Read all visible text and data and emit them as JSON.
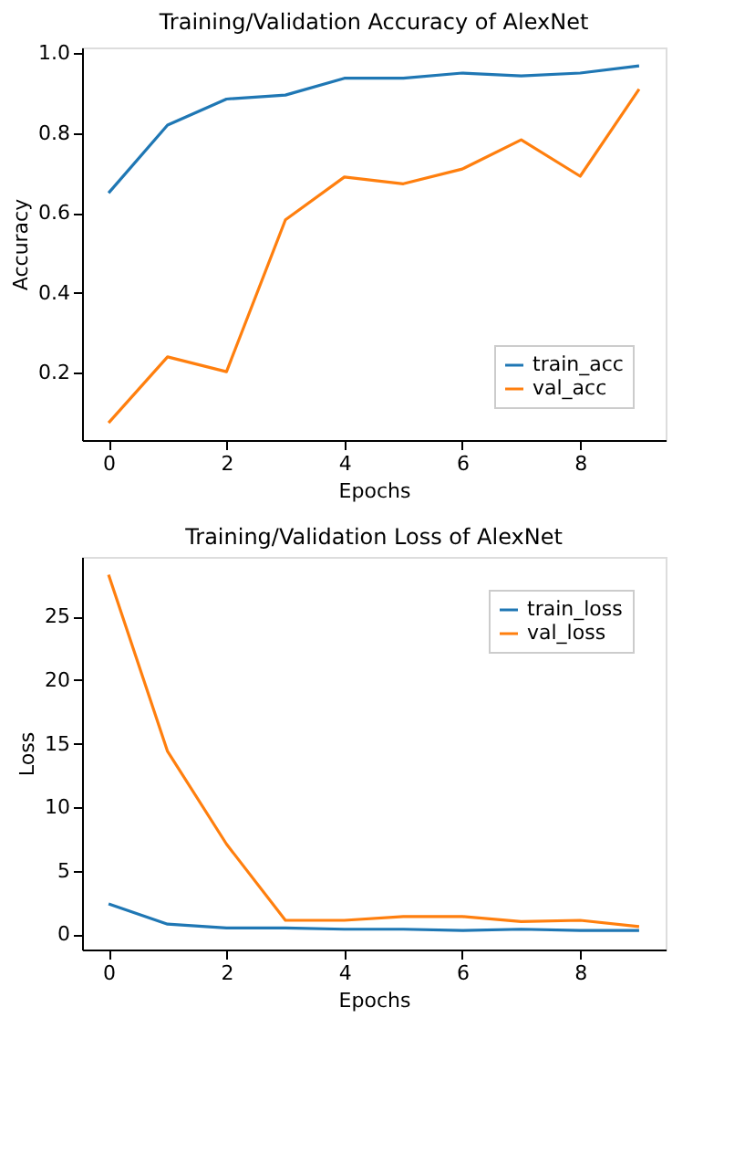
{
  "chart_data": [
    {
      "type": "line",
      "title": "Training/Validation Accuracy of AlexNet",
      "xlabel": "Epochs",
      "ylabel": "Accuracy",
      "x": [
        0,
        1,
        2,
        3,
        4,
        5,
        6,
        7,
        8,
        9
      ],
      "xlim": [
        -0.45,
        9.45
      ],
      "xticks": [
        0,
        2,
        4,
        6,
        8
      ],
      "ylim": [
        0.032,
        1.014
      ],
      "yticks": [
        0.2,
        0.4,
        0.6,
        0.8,
        {
          "value": 1,
          "label": "1.0"
        }
      ],
      "grid": false,
      "legend": "bottom right",
      "series": [
        {
          "name": "train_acc",
          "color": "#1f77b4",
          "values": [
            0.65,
            0.82,
            0.885,
            0.895,
            0.937,
            0.937,
            0.95,
            0.943,
            0.95,
            0.968
          ]
        },
        {
          "name": "val_acc",
          "color": "#ff7f0e",
          "values": [
            0.075,
            0.24,
            0.203,
            0.583,
            0.69,
            0.673,
            0.71,
            0.783,
            0.692,
            0.91
          ]
        }
      ]
    },
    {
      "type": "line",
      "title": "Training/Validation Loss of AlexNet",
      "xlabel": "Epochs",
      "ylabel": "Loss",
      "x": [
        0,
        1,
        2,
        3,
        4,
        5,
        6,
        7,
        8,
        9
      ],
      "xlim": [
        -0.45,
        9.45
      ],
      "xticks": [
        0,
        2,
        4,
        6,
        8
      ],
      "ylim": [
        -1.2,
        29.7
      ],
      "yticks": [
        0,
        5,
        10,
        15,
        20,
        25
      ],
      "grid": false,
      "legend": "top right",
      "series": [
        {
          "name": "train_loss",
          "color": "#1f77b4",
          "values": [
            2.4,
            0.8,
            0.5,
            0.5,
            0.4,
            0.4,
            0.3,
            0.4,
            0.3,
            0.3
          ]
        },
        {
          "name": "val_loss",
          "color": "#ff7f0e",
          "values": [
            28.3,
            14.4,
            7.1,
            1.1,
            1.1,
            1.4,
            1.4,
            1.0,
            1.1,
            0.6
          ]
        }
      ]
    }
  ]
}
